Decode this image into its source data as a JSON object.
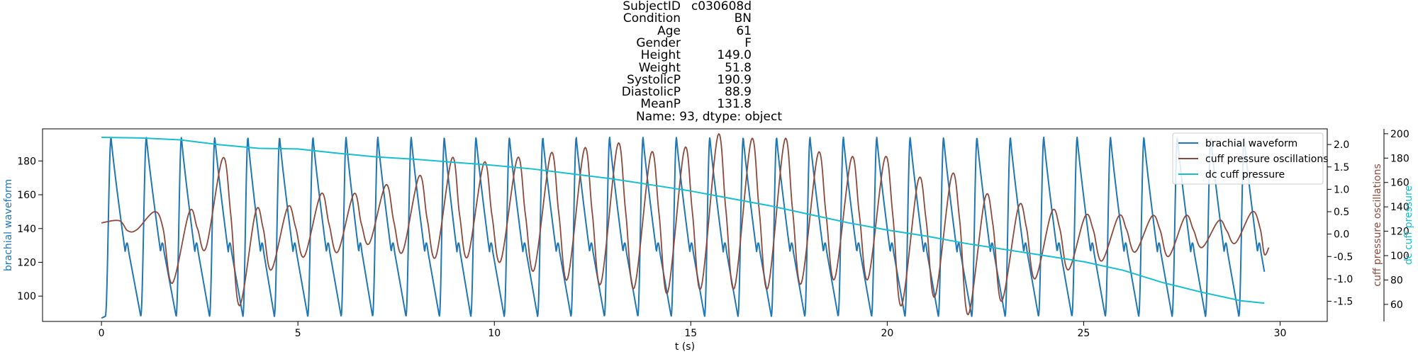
{
  "title_block": {
    "rows": [
      {
        "key": "SubjectID",
        "value": "c030608d"
      },
      {
        "key": "Condition",
        "value": "BN"
      },
      {
        "key": "Age",
        "value": "61"
      },
      {
        "key": "Gender",
        "value": "F"
      },
      {
        "key": "Height",
        "value": "149.0"
      },
      {
        "key": "Weight",
        "value": "51.8"
      },
      {
        "key": "SystolicP",
        "value": "190.9"
      },
      {
        "key": "DiastolicP",
        "value": "88.9"
      },
      {
        "key": "MeanP",
        "value": "131.8"
      }
    ],
    "footer": "Name: 93, dtype: object"
  },
  "chart_data": {
    "type": "line",
    "xlabel": "t (s)",
    "xlim": [
      -1.5,
      31.2
    ],
    "xticks": [
      0,
      5,
      10,
      15,
      20,
      25,
      30
    ],
    "grid": false,
    "legend_position": "top-right",
    "axes": {
      "left": {
        "label": "brachial waveform",
        "ylim": [
          85,
          199
        ],
        "ticks": [
          100,
          120,
          140,
          160,
          180
        ]
      },
      "right1": {
        "label": "cuff pressure oscillations",
        "ylim": [
          -1.95,
          2.35
        ],
        "ticks": [
          -1.5,
          -1.0,
          -0.5,
          0.0,
          0.5,
          1.0,
          1.5,
          2.0
        ]
      },
      "right2": {
        "label": "dc cuff pressure",
        "ylim": [
          46,
          204
        ],
        "ticks": [
          60,
          80,
          100,
          120,
          140,
          160,
          180,
          200
        ]
      }
    },
    "series": [
      {
        "name": "brachial waveform",
        "axis": "left",
        "color": "#1f77b4",
        "t_start": 0.0,
        "t_end": 29.6,
        "beat_times": [
          0.1,
          1.0,
          1.9,
          2.75,
          3.6,
          4.4,
          5.25,
          6.1,
          6.9,
          7.75,
          8.6,
          9.4,
          10.25,
          11.1,
          11.95,
          12.8,
          13.65,
          14.5,
          15.35,
          16.2,
          17.05,
          17.9,
          18.75,
          19.6,
          20.45,
          21.3,
          22.15,
          23.0,
          23.85,
          24.7,
          25.55,
          26.4,
          27.25,
          28.1,
          28.95
        ],
        "systolic": 194,
        "diastolic": 88,
        "start_value": 87,
        "end_value": 90
      },
      {
        "name": "cuff pressure oscillations",
        "axis": "right1",
        "color": "#8c4a3c",
        "start_value": 0.25,
        "end_value": -0.45,
        "baseline": 0.0,
        "beat_times": [
          0.2,
          1.1,
          2.0,
          2.85,
          3.7,
          4.5,
          5.35,
          6.2,
          7.0,
          7.85,
          8.7,
          9.5,
          10.35,
          11.2,
          12.05,
          12.9,
          13.75,
          14.6,
          15.45,
          16.3,
          17.15,
          18.0,
          18.85,
          19.7,
          20.55,
          21.4,
          22.25,
          23.1,
          23.95,
          24.8,
          25.65,
          26.5,
          27.35,
          28.2,
          29.05
        ],
        "peaks": [
          0.3,
          0.5,
          0.5,
          1.7,
          0.5,
          0.6,
          0.9,
          0.9,
          1.1,
          1.3,
          1.7,
          1.6,
          1.7,
          1.8,
          1.9,
          2.0,
          1.8,
          1.9,
          2.2,
          2.1,
          2.1,
          1.8,
          1.7,
          1.7,
          1.2,
          1.3,
          0.8,
          0.6,
          0.5,
          0.4,
          0.4,
          0.4,
          0.4,
          0.3,
          0.5
        ],
        "troughs": [
          0.1,
          -1.1,
          -0.3,
          -1.6,
          -0.8,
          -0.5,
          -0.4,
          -0.2,
          -0.4,
          -0.5,
          -0.5,
          -0.6,
          -0.8,
          -1.0,
          -1.1,
          -1.2,
          -1.3,
          -1.2,
          -1.2,
          -1.2,
          -1.1,
          -1.0,
          -1.0,
          -1.6,
          -1.4,
          -1.8,
          -1.5,
          -1.0,
          -0.8,
          -0.6,
          -0.4,
          -0.5,
          -0.3,
          -0.2,
          -0.3
        ]
      },
      {
        "name": "dc cuff pressure",
        "axis": "right2",
        "color": "#17becf",
        "x": [
          0,
          1,
          2,
          3,
          4,
          5,
          6,
          7,
          8,
          9,
          10,
          11,
          12,
          13,
          14,
          15,
          16,
          17,
          18,
          19,
          20,
          21,
          22,
          23,
          24,
          25,
          26,
          27,
          28,
          29,
          29.6
        ],
        "y": [
          197,
          196.5,
          195,
          191,
          188,
          187.5,
          184,
          181,
          179,
          176.5,
          174,
          171,
          167,
          163,
          158,
          153,
          147,
          141,
          134,
          127,
          121,
          116,
          110,
          105,
          100,
          95,
          88,
          78,
          70,
          63,
          61
        ]
      }
    ]
  }
}
